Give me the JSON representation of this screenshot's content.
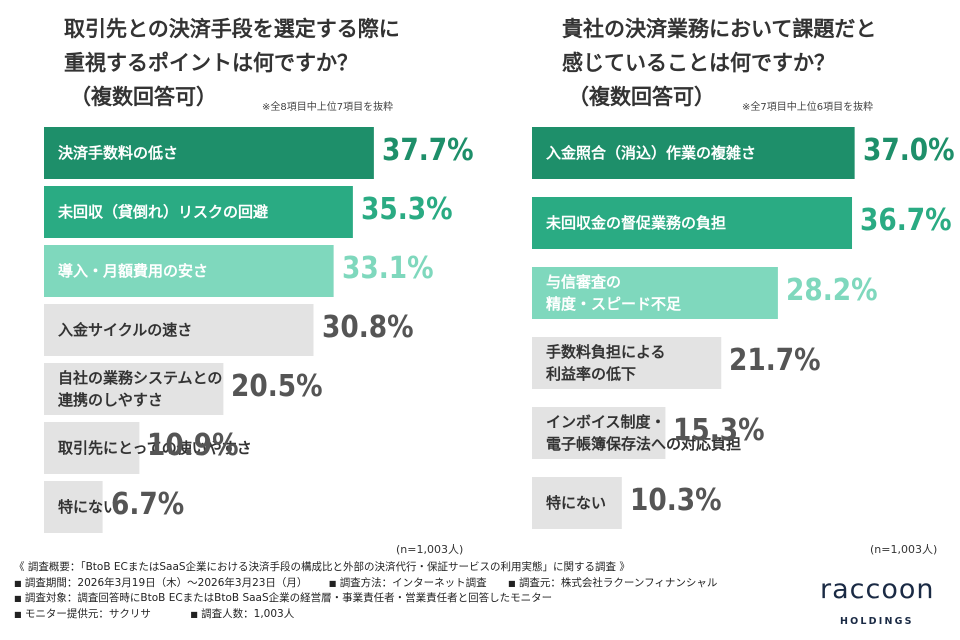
{
  "colors": {
    "rank1": "#1e8f6a",
    "rank2": "#2aab83",
    "rank3": "#7fd8bd",
    "other": "#e3e3e3",
    "value_other": "#555555",
    "label_dark": "#333333",
    "label_light": "#ffffff"
  },
  "chart_data": [
    {
      "type": "bar",
      "orientation": "horizontal",
      "title_lines": [
        "取引先との決済手段を選定する際に",
        "重視するポイントは何ですか？",
        "（複数回答可）"
      ],
      "note": "※全8項目中上位7項目を抜粋",
      "sample": "(n=1,003人)",
      "unit": "%",
      "xlim": [
        0,
        40
      ],
      "categories": [
        [
          "決済手数料の低さ"
        ],
        [
          "未回収（貸倒れ）リスクの回避"
        ],
        [
          "導入・月額費用の安さ"
        ],
        [
          "入金サイクルの速さ"
        ],
        [
          "自社の業務システムとの",
          "連携のしやすさ"
        ],
        [
          "取引先にとっての使いやすさ"
        ],
        [
          "特にない"
        ]
      ],
      "values": [
        37.7,
        35.3,
        33.1,
        30.8,
        20.5,
        10.9,
        6.7
      ],
      "value_labels": [
        "37.7%",
        "35.3%",
        "33.1%",
        "30.8%",
        "20.5%",
        "10.9%",
        "6.7%"
      ]
    },
    {
      "type": "bar",
      "orientation": "horizontal",
      "title_lines": [
        "貴社の決済業務において課題だと",
        "感じていることは何ですか？",
        "（複数回答可）"
      ],
      "note": "※全7項目中上位6項目を抜粋",
      "sample": "(n=1,003人)",
      "unit": "%",
      "xlim": [
        0,
        40
      ],
      "categories": [
        [
          "入金照合（消込）作業の複雑さ"
        ],
        [
          "未回収金の督促業務の負担"
        ],
        [
          "与信審査の",
          "精度・スピード不足"
        ],
        [
          "手数料負担による",
          "利益率の低下"
        ],
        [
          "インボイス制度・",
          "電子帳簿保存法への対応負担"
        ],
        [
          "特にない"
        ]
      ],
      "values": [
        37.0,
        36.7,
        28.2,
        21.7,
        15.3,
        10.3
      ],
      "value_labels": [
        "37.0%",
        "36.7%",
        "28.2%",
        "21.7%",
        "15.3%",
        "10.3%"
      ]
    }
  ],
  "footer": {
    "overview": "《 調査概要：「BtoB ECまたはSaaS企業における決済手段の構成比と外部の決済代行・保証サービスの利用実態」に関する調査 》",
    "items": [
      [
        "調査期間：2026年3月19日（木）〜2026年3月23日（月）",
        "調査方法：インターネット調査",
        "調査元：株式会社ラクーンフィナンシャル"
      ],
      [
        "調査対象：調査回答時にBtoB ECまたはBtoB SaaS企業の経営層・事業責任者・営業責任者と回答したモニター"
      ],
      [
        "モニター提供元：サクリサ",
        "調査人数：1,003人"
      ]
    ]
  },
  "logo": {
    "word": "raccoon",
    "sub": "HOLDINGS"
  }
}
